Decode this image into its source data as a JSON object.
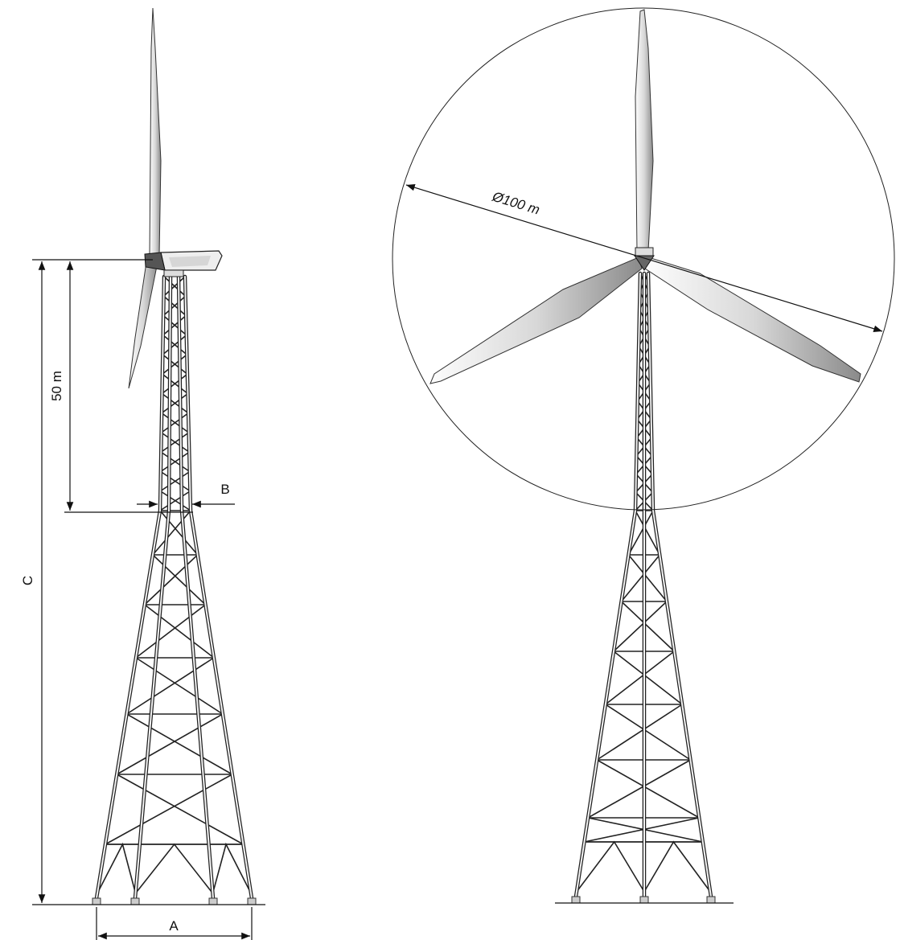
{
  "labels": {
    "rotor_diameter": "Ø100 m",
    "height_section": "50 m",
    "width_b": "B",
    "height_c": "C",
    "width_a": "A"
  }
}
